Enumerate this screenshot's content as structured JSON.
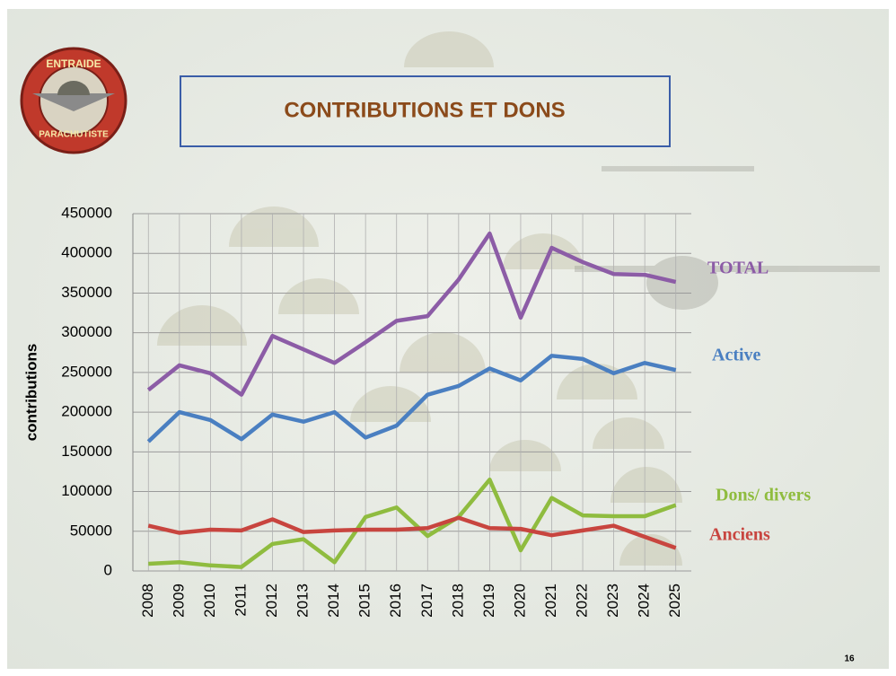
{
  "logo": {
    "top_text": "ENTRAIDE",
    "bottom_text": "PARACHUTISTE"
  },
  "page_number": "16",
  "chart_data": {
    "type": "line",
    "title": "CONTRIBUTIONS ET DONS",
    "y_label": "contributions",
    "categories": [
      "2008",
      "2009",
      "2010",
      "2011",
      "2012",
      "2013",
      "2014",
      "2015",
      "2016",
      "2017",
      "2018",
      "2019",
      "2020",
      "2021",
      "2022",
      "2023",
      "2024",
      "2025"
    ],
    "series": [
      {
        "name": "TOTAL",
        "color": "#8c5ca6",
        "values": [
          228000,
          259000,
          249000,
          222000,
          296000,
          279000,
          262000,
          288000,
          315000,
          321000,
          367000,
          425000,
          319000,
          407000,
          389000,
          374000,
          373000,
          364000
        ]
      },
      {
        "name": "Active",
        "color": "#4a7fc1",
        "values": [
          163000,
          200000,
          190000,
          166000,
          197000,
          188000,
          200000,
          168000,
          183000,
          222000,
          233000,
          255000,
          240000,
          271000,
          267000,
          249000,
          262000,
          253000
        ]
      },
      {
        "name": "Dons/ divers",
        "color": "#8fbc3f",
        "values": [
          9000,
          11000,
          7000,
          5000,
          34000,
          40000,
          11000,
          68000,
          80000,
          44000,
          68000,
          115000,
          26000,
          92000,
          70000,
          69000,
          69000,
          83000
        ]
      },
      {
        "name": "Anciens",
        "color": "#c8453f",
        "values": [
          57000,
          48000,
          52000,
          51000,
          65000,
          49000,
          51000,
          52000,
          52000,
          54000,
          67000,
          54000,
          53000,
          45000,
          51000,
          57000,
          43000,
          29000
        ]
      }
    ],
    "ylim": [
      0,
      450000
    ],
    "yticks": [
      0,
      50000,
      100000,
      150000,
      200000,
      250000,
      300000,
      350000,
      400000,
      450000
    ],
    "grid": true
  }
}
